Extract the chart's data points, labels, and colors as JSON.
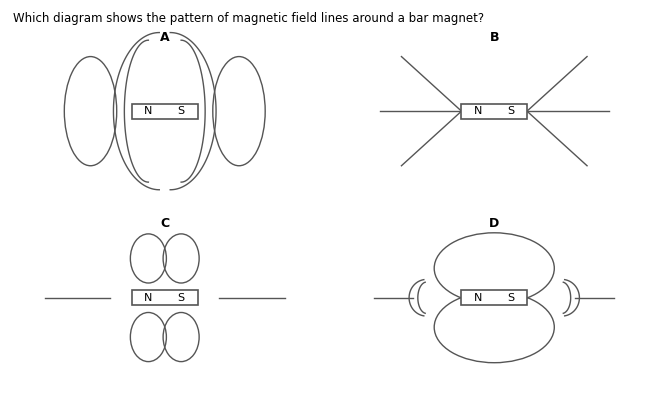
{
  "title": "Which diagram shows the pattern of magnetic field lines around a bar magnet?",
  "background_color": "#ffffff",
  "text_color": "#000000",
  "magnet_color": "#ffffff",
  "magnet_border": "#555555",
  "line_color": "#555555",
  "label_A": "A",
  "label_B": "B",
  "label_C": "C",
  "label_D": "D",
  "N_label": "N",
  "S_label": "S"
}
